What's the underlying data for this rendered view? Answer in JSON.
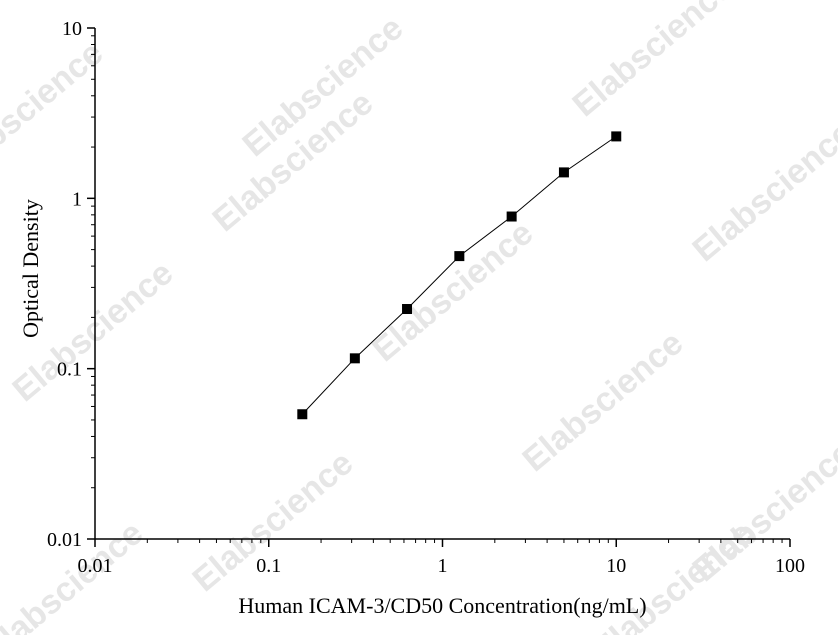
{
  "chart_data": {
    "type": "scatter",
    "title": "",
    "xlabel": "Human ICAM-3/CD50 Concentration(ng/mL)",
    "ylabel": "Optical Density",
    "x_scale": "log",
    "y_scale": "log",
    "xlim": [
      0.01,
      100
    ],
    "ylim": [
      0.01,
      10
    ],
    "x_ticks": [
      "0.01",
      "0.1",
      "1",
      "10",
      "100"
    ],
    "y_ticks": [
      "0.01",
      "0.1",
      "1",
      "10"
    ],
    "grid": false,
    "legend": "none",
    "series": [
      {
        "x": [
          0.156,
          0.313,
          0.625,
          1.25,
          2.5,
          5,
          10
        ],
        "y": [
          0.054,
          0.115,
          0.224,
          0.458,
          0.782,
          1.42,
          2.31
        ],
        "marker": "square",
        "line": true
      }
    ],
    "watermark": "Elabscience",
    "colors": {
      "marker": "#000000",
      "line": "#000000",
      "watermark": "#e6e6e6"
    }
  }
}
